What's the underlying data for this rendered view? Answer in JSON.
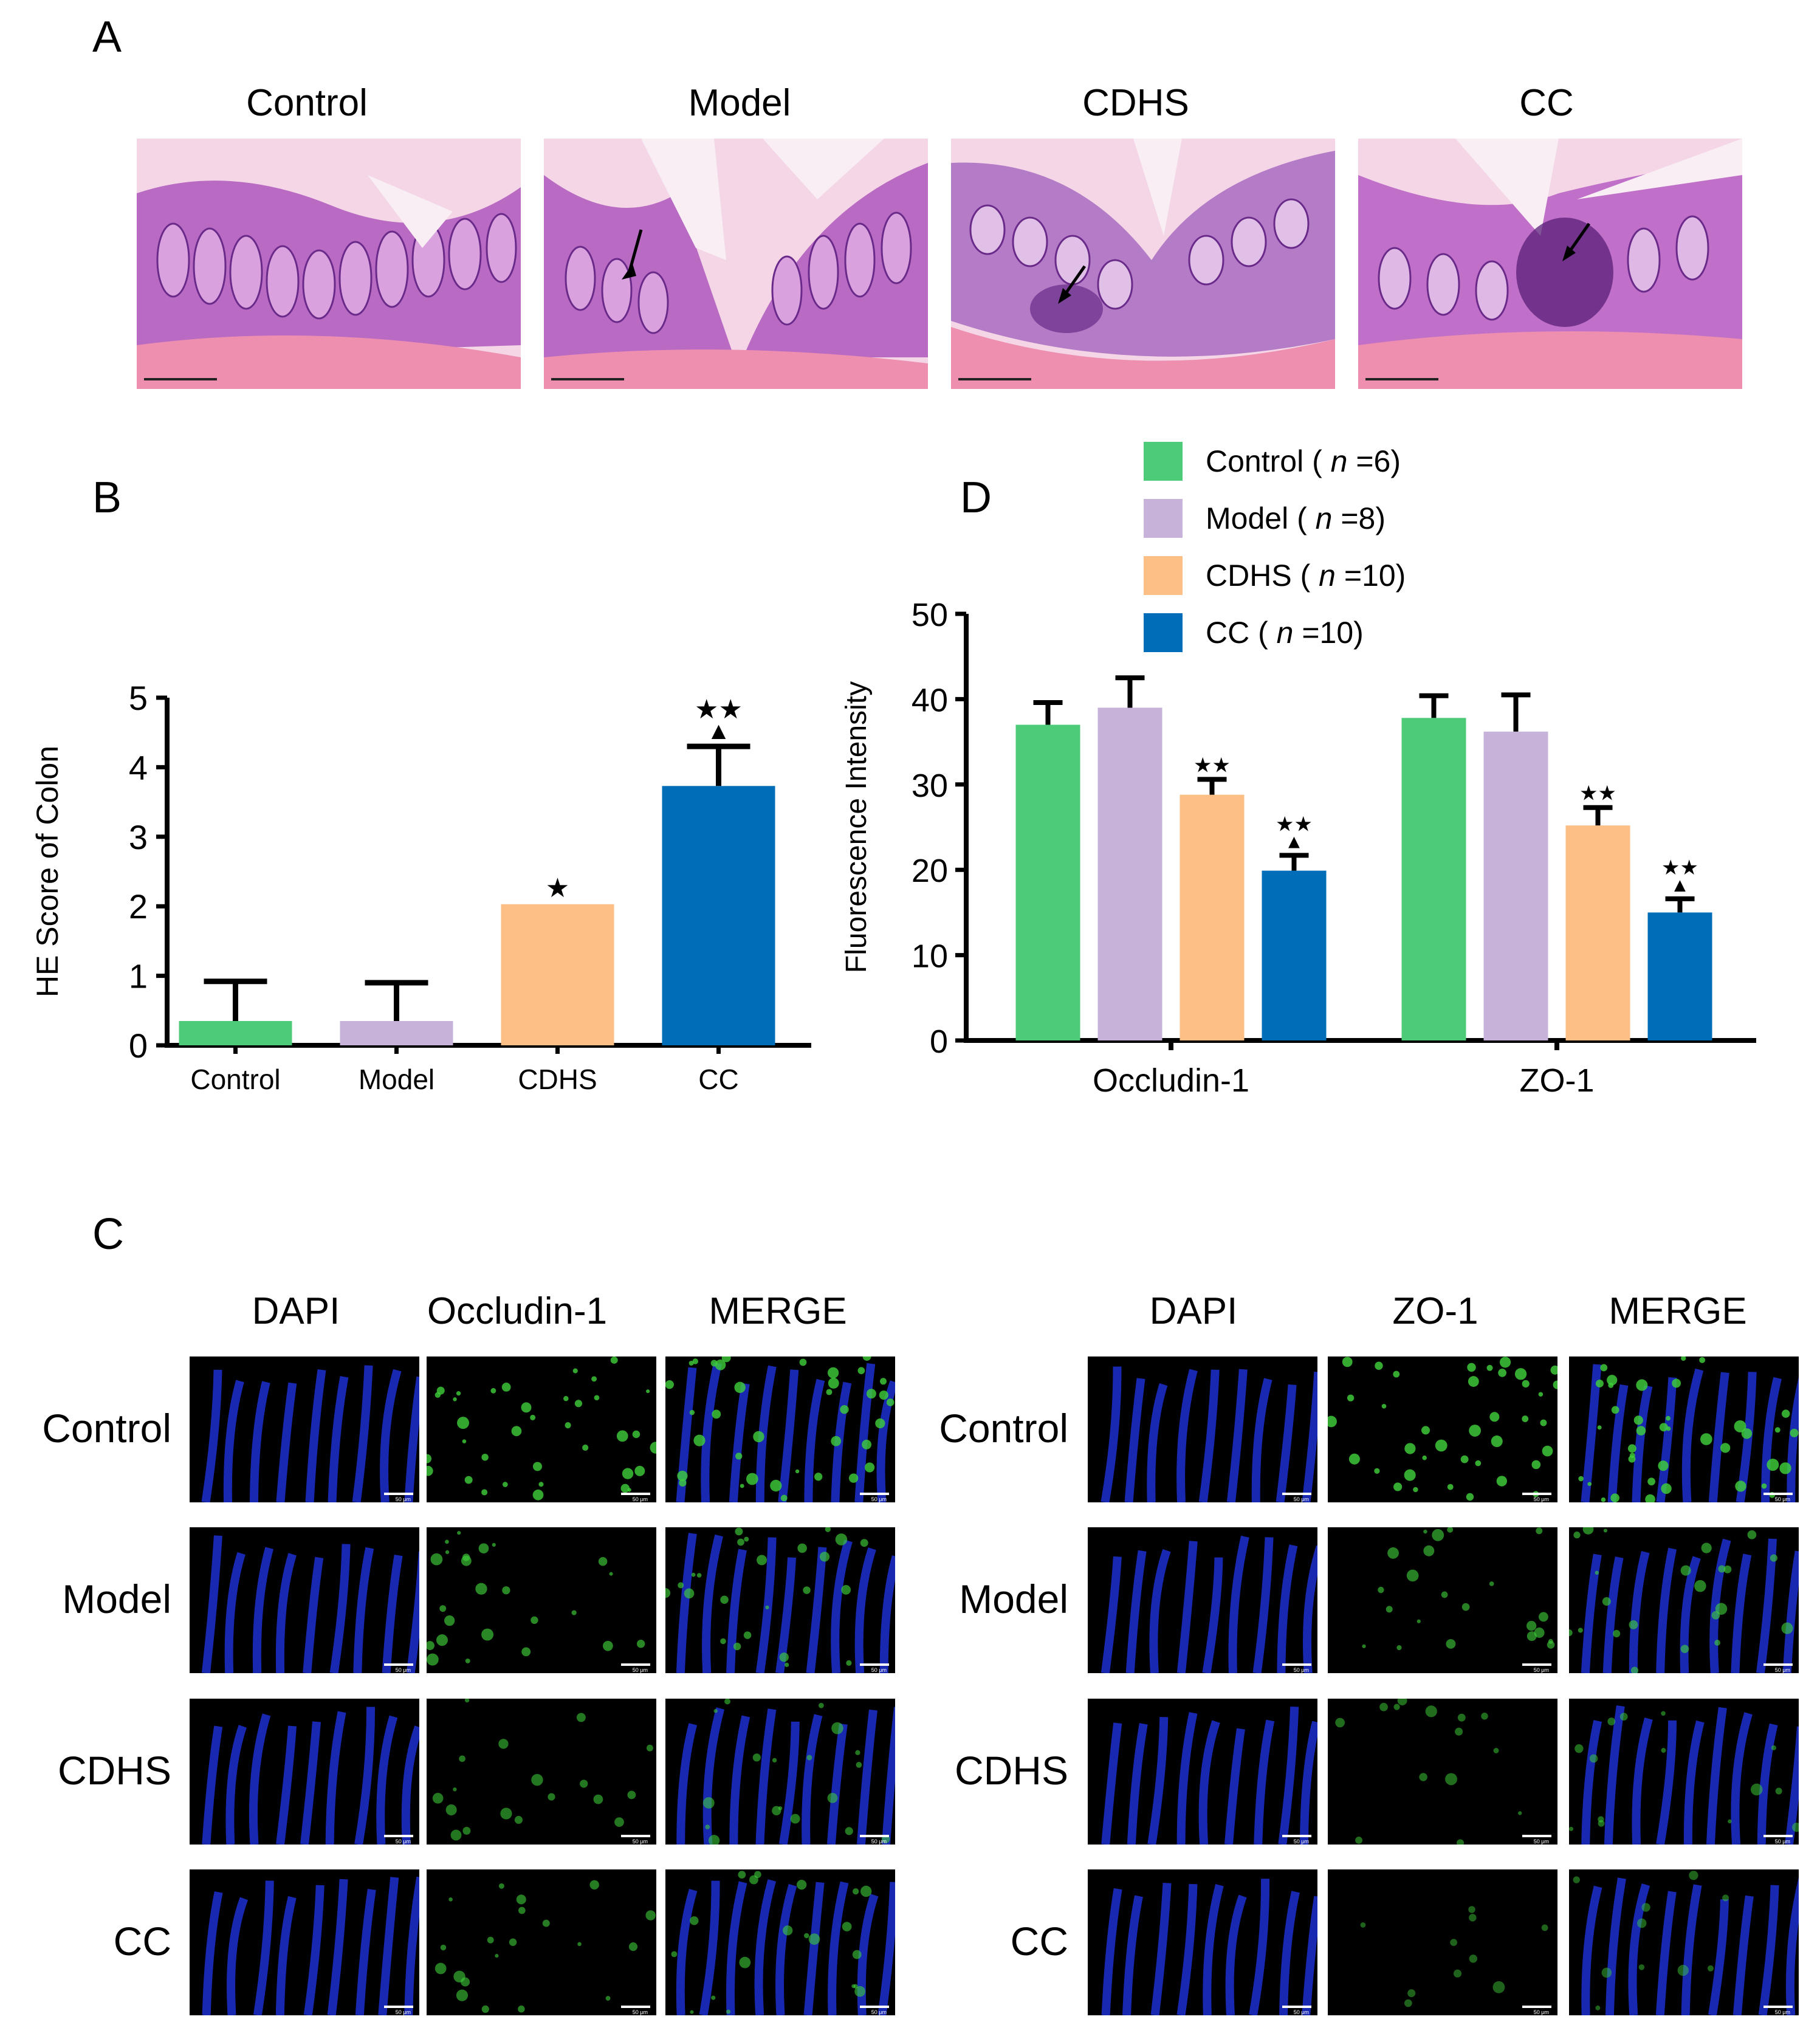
{
  "panel_labels": {
    "a": "A",
    "b": "B",
    "c": "C",
    "d": "D"
  },
  "panel_a": {
    "headers": [
      "Control",
      "Model",
      "CDHS",
      "CC"
    ]
  },
  "panel_c": {
    "left_headers": [
      "DAPI",
      "Occludin-1",
      "MERGE"
    ],
    "right_headers": [
      "DAPI",
      "ZO-1",
      "MERGE"
    ],
    "row_labels": [
      "Control",
      "Model",
      "CDHS",
      "CC"
    ],
    "scale_label": "50 μm"
  },
  "legend": {
    "items": [
      {
        "name": "Control",
        "n": "6",
        "color": "#4ecb78"
      },
      {
        "name": "Model",
        "n": "8",
        "color": "#c7b3d9"
      },
      {
        "name": "CDHS",
        "n": "10",
        "color": "#fdbf86"
      },
      {
        "name": "CC",
        "n": "10",
        "color": "#006db8"
      }
    ],
    "n_prefix": "n",
    "eq": "="
  },
  "chart_data": [
    {
      "type": "bar",
      "panel": "B",
      "categories": [
        "Control",
        "Model",
        "CDHS",
        "CC"
      ],
      "values": [
        0.35,
        0.35,
        2.03,
        3.73
      ],
      "errors": [
        0.57,
        0.55,
        0.0,
        0.57
      ],
      "colors": [
        "#4ecb78",
        "#c7b3d9",
        "#fdbf86",
        "#006db8"
      ],
      "annotations": [
        "",
        "",
        "★",
        "★★▲"
      ],
      "ylabel": "HE Score of Colon",
      "ylim": [
        0,
        5
      ],
      "yticks": [
        0,
        1,
        2,
        3,
        4,
        5
      ]
    },
    {
      "type": "bar",
      "panel": "D",
      "categories": [
        "Occludin-1",
        "ZO-1"
      ],
      "series": [
        {
          "name": "Control",
          "values": [
            37.0,
            37.8
          ],
          "errors": [
            2.6,
            2.6
          ]
        },
        {
          "name": "Model",
          "values": [
            39.0,
            36.2
          ],
          "errors": [
            3.5,
            4.3
          ]
        },
        {
          "name": "CDHS",
          "values": [
            28.8,
            25.2
          ],
          "errors": [
            1.8,
            2.1
          ]
        },
        {
          "name": "CC",
          "values": [
            19.9,
            15.0
          ],
          "errors": [
            1.8,
            1.6
          ]
        }
      ],
      "annotations": [
        [
          "",
          "",
          "★★",
          "★★▲"
        ],
        [
          "",
          "",
          "★★",
          "★★▲"
        ]
      ],
      "ylabel": "Fluorescence Intensity",
      "ylim": [
        0,
        50
      ],
      "yticks": [
        0,
        10,
        20,
        30,
        40,
        50
      ]
    }
  ]
}
